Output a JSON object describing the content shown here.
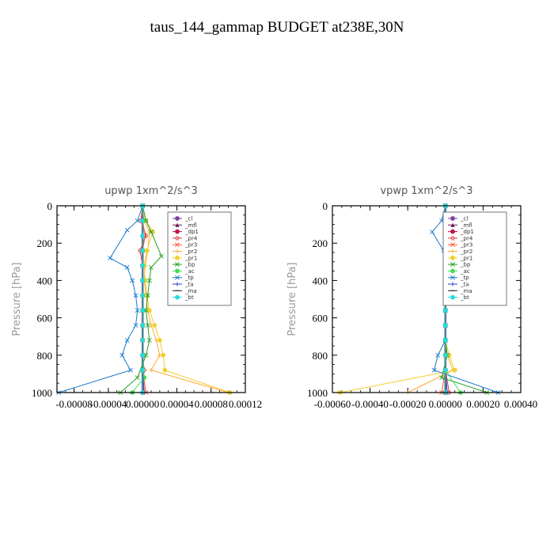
{
  "figure": {
    "title": "taus_144_gammap  BUDGET at238E,30N"
  },
  "chart_data": [
    {
      "type": "line",
      "title": "upwp   1xm^2/s^3",
      "xlabel": "",
      "ylabel": "Pressure [hPa]",
      "ylim": [
        1000,
        0
      ],
      "xlim": [
        -0.0001,
        0.00012
      ],
      "yticks": [
        0,
        200,
        400,
        600,
        800,
        1000
      ],
      "xticks": [
        -8e-05,
        -4e-05,
        0.0,
        4e-05,
        8e-05,
        0.00012
      ],
      "xtick_labels": [
        "-0.00008",
        "-0.00004",
        "0.00000",
        "0.00004",
        "0.00008",
        "0.00012"
      ],
      "ytick_labels": [
        "0",
        "200",
        "400",
        "600",
        "800",
        "1000"
      ],
      "legend_position": "top-right",
      "series": [
        {
          "name": "_cl",
          "color": "#7f3f9f",
          "marker": "circle",
          "x": [
            0,
            0,
            0,
            0,
            0,
            0,
            0,
            0,
            0,
            0,
            0,
            0,
            0
          ],
          "y": [
            0,
            80,
            160,
            240,
            320,
            400,
            480,
            560,
            640,
            720,
            800,
            880,
            1000
          ]
        },
        {
          "name": "_mfl",
          "color": "#6a1a55",
          "marker": "triangle",
          "x": [
            0,
            0,
            0,
            0,
            0,
            0,
            0,
            0,
            0,
            0,
            0,
            0,
            0
          ],
          "y": [
            0,
            80,
            160,
            240,
            320,
            400,
            480,
            560,
            640,
            720,
            800,
            880,
            1000
          ]
        },
        {
          "name": "_dp1",
          "color": "#c0144e",
          "marker": "circle",
          "x": [
            0,
            0,
            0,
            0,
            0,
            0,
            0,
            0,
            0,
            0,
            0,
            0,
            0
          ],
          "y": [
            0,
            80,
            160,
            240,
            320,
            400,
            480,
            560,
            640,
            720,
            800,
            880,
            1000
          ]
        },
        {
          "name": "_pr4",
          "color": "#e03c3c",
          "marker": "diamond",
          "x": [
            0,
            -2e-06,
            4e-06,
            -3e-06,
            0,
            0,
            0,
            0,
            0,
            0,
            0,
            2e-06,
            0
          ],
          "y": [
            0,
            80,
            160,
            240,
            320,
            400,
            480,
            560,
            640,
            720,
            800,
            880,
            1000
          ]
        },
        {
          "name": "_pr3",
          "color": "#ff5533",
          "marker": "x",
          "x": [
            0,
            0,
            3e-06,
            0,
            0,
            0,
            0,
            0,
            0,
            0,
            0,
            0,
            4e-06
          ],
          "y": [
            0,
            80,
            160,
            240,
            320,
            400,
            480,
            560,
            640,
            720,
            800,
            880,
            1000
          ]
        },
        {
          "name": "_pr2",
          "color": "#ffaa33",
          "marker": "plus",
          "x": [
            0,
            2e-06,
            8e-06,
            6e-06,
            3e-06,
            2e-06,
            4e-06,
            6e-06,
            1e-05,
            1.6e-05,
            2e-05,
            1e-05,
            0.0001
          ],
          "y": [
            0,
            80,
            140,
            240,
            320,
            400,
            480,
            560,
            640,
            720,
            800,
            880,
            1000
          ]
        },
        {
          "name": "_pr1",
          "color": "#f0d030",
          "marker": "circle",
          "x": [
            0,
            4e-06,
            1.2e-05,
            5e-06,
            2e-06,
            3e-06,
            5e-06,
            8e-06,
            1.4e-05,
            2e-05,
            2.4e-05,
            2.6e-05,
            0.000102
          ],
          "y": [
            0,
            80,
            140,
            240,
            320,
            400,
            480,
            560,
            640,
            720,
            800,
            880,
            1000
          ]
        },
        {
          "name": "_bp",
          "color": "#22a022",
          "marker": "x",
          "x": [
            0,
            4e-06,
            1e-05,
            2.2e-05,
            1e-05,
            8e-06,
            6e-06,
            4e-06,
            6e-06,
            8e-06,
            4e-06,
            -6e-06,
            -2.6e-05
          ],
          "y": [
            0,
            80,
            140,
            270,
            330,
            400,
            480,
            560,
            640,
            720,
            800,
            920,
            1000
          ]
        },
        {
          "name": "_ac",
          "color": "#44dd55",
          "marker": "circle",
          "x": [
            0,
            0,
            0,
            0,
            0,
            0,
            0,
            0,
            0,
            0,
            0,
            2e-06,
            -1.2e-05
          ],
          "y": [
            0,
            80,
            160,
            240,
            320,
            400,
            480,
            560,
            640,
            720,
            800,
            920,
            1000
          ]
        },
        {
          "name": "_tp",
          "color": "#1a7acc",
          "marker": "x",
          "x": [
            0,
            -6e-06,
            -1.8e-05,
            -3.8e-05,
            -1.8e-05,
            -1.2e-05,
            -8e-06,
            -6e-06,
            -8e-06,
            -1.8e-05,
            -2.4e-05,
            -1.4e-05,
            -9.8e-05
          ],
          "y": [
            0,
            80,
            130,
            280,
            330,
            400,
            480,
            560,
            640,
            720,
            800,
            880,
            1000
          ]
        },
        {
          "name": "_ta",
          "color": "#2a3acc",
          "marker": "plus",
          "x": [
            0,
            0,
            0,
            0,
            0,
            0,
            0,
            0,
            0,
            0,
            0,
            0,
            2e-06
          ],
          "y": [
            0,
            80,
            160,
            240,
            320,
            400,
            480,
            560,
            640,
            720,
            800,
            880,
            1000
          ]
        },
        {
          "name": "_ma",
          "color": "#222222",
          "marker": "dash",
          "x": [
            0,
            0,
            0,
            0,
            0,
            0,
            0,
            0,
            0,
            0,
            0,
            0,
            0
          ],
          "y": [
            0,
            80,
            160,
            240,
            320,
            400,
            480,
            560,
            640,
            720,
            800,
            880,
            1000
          ]
        },
        {
          "name": "_bt",
          "color": "#22dddd",
          "marker": "circle",
          "x": [
            0,
            0,
            0,
            0,
            0,
            0,
            0,
            0,
            0,
            0,
            0,
            0,
            0
          ],
          "y": [
            0,
            80,
            160,
            240,
            320,
            400,
            480,
            560,
            640,
            720,
            800,
            880,
            1000
          ]
        }
      ]
    },
    {
      "type": "line",
      "title": "vpwp   1xm^2/s^3",
      "xlabel": "",
      "ylabel": "Pressure [hPa]",
      "ylim": [
        1000,
        0
      ],
      "xlim": [
        -0.0006,
        0.0004
      ],
      "yticks": [
        0,
        200,
        400,
        600,
        800,
        1000
      ],
      "xticks": [
        -0.0006,
        -0.0004,
        -0.0002,
        0.0,
        0.0002,
        0.0004
      ],
      "xtick_labels": [
        "-0.00060",
        "-0.00040",
        "-0.00020",
        "0.00000",
        "0.00020",
        "0.00040"
      ],
      "ytick_labels": [
        "0",
        "200",
        "400",
        "600",
        "800",
        "1000"
      ],
      "legend_position": "top-right",
      "series": [
        {
          "name": "_cl",
          "color": "#7f3f9f",
          "marker": "circle",
          "x": [
            0,
            0,
            0,
            0,
            0,
            0,
            0,
            0,
            0,
            0,
            0,
            0,
            0
          ],
          "y": [
            0,
            80,
            160,
            240,
            320,
            400,
            480,
            560,
            640,
            720,
            800,
            880,
            1000
          ]
        },
        {
          "name": "_mfl",
          "color": "#6a1a55",
          "marker": "triangle",
          "x": [
            0,
            0,
            0,
            0,
            0,
            0,
            0,
            0,
            0,
            0,
            0,
            0,
            0
          ],
          "y": [
            0,
            80,
            160,
            240,
            320,
            400,
            480,
            560,
            640,
            720,
            800,
            880,
            1000
          ]
        },
        {
          "name": "_dp1",
          "color": "#c0144e",
          "marker": "circle",
          "x": [
            0,
            0,
            0,
            0,
            0,
            0,
            0,
            0,
            0,
            0,
            0,
            0,
            0
          ],
          "y": [
            0,
            80,
            160,
            240,
            320,
            400,
            480,
            560,
            640,
            720,
            800,
            880,
            1000
          ]
        },
        {
          "name": "_pr4",
          "color": "#e03c3c",
          "marker": "diamond",
          "x": [
            0,
            0,
            0,
            0,
            0,
            0,
            0,
            0,
            0,
            0,
            0,
            0,
            2e-05
          ],
          "y": [
            0,
            80,
            160,
            240,
            320,
            400,
            480,
            560,
            640,
            720,
            800,
            880,
            1000
          ]
        },
        {
          "name": "_pr3",
          "color": "#ff5533",
          "marker": "x",
          "x": [
            0,
            0,
            3e-05,
            0,
            0,
            0,
            0,
            0,
            0,
            0,
            0,
            0,
            -2e-05
          ],
          "y": [
            0,
            80,
            150,
            240,
            320,
            400,
            480,
            560,
            640,
            720,
            800,
            880,
            1000
          ]
        },
        {
          "name": "_pr2",
          "color": "#ffaa33",
          "marker": "plus",
          "x": [
            0,
            0,
            1e-05,
            0,
            0,
            0,
            0,
            0,
            0,
            0,
            1e-05,
            4e-05,
            -0.0002
          ],
          "y": [
            0,
            80,
            150,
            240,
            320,
            400,
            480,
            560,
            640,
            720,
            800,
            880,
            1000
          ]
        },
        {
          "name": "_pr1",
          "color": "#f0d030",
          "marker": "circle",
          "x": [
            0,
            0,
            2e-05,
            0,
            0,
            0,
            0,
            0,
            0,
            0,
            2e-05,
            5e-05,
            -0.00056
          ],
          "y": [
            0,
            80,
            150,
            240,
            320,
            400,
            480,
            560,
            640,
            720,
            800,
            880,
            1000
          ]
        },
        {
          "name": "_bp",
          "color": "#22a022",
          "marker": "x",
          "x": [
            0,
            0,
            3e-05,
            0,
            0,
            0,
            0,
            0,
            0,
            0,
            1e-05,
            -2e-05,
            0.00022
          ],
          "y": [
            0,
            80,
            150,
            240,
            320,
            400,
            480,
            560,
            640,
            720,
            800,
            920,
            1000
          ]
        },
        {
          "name": "_ac",
          "color": "#44dd55",
          "marker": "circle",
          "x": [
            0,
            0,
            0,
            0,
            0,
            0,
            0,
            0,
            0,
            0,
            0,
            0,
            8e-05
          ],
          "y": [
            0,
            80,
            160,
            240,
            320,
            400,
            480,
            560,
            640,
            720,
            800,
            880,
            1000
          ]
        },
        {
          "name": "_tp",
          "color": "#1a7acc",
          "marker": "x",
          "x": [
            0,
            -2e-05,
            -7e-05,
            -1e-05,
            0,
            0,
            0,
            0,
            0,
            0,
            -4e-05,
            -6e-05,
            0.00028
          ],
          "y": [
            0,
            80,
            140,
            240,
            320,
            400,
            480,
            560,
            640,
            720,
            800,
            880,
            1000
          ]
        },
        {
          "name": "_ta",
          "color": "#2a3acc",
          "marker": "plus",
          "x": [
            0,
            0,
            0,
            0,
            0,
            0,
            0,
            0,
            0,
            0,
            0,
            0,
            1e-05
          ],
          "y": [
            0,
            80,
            160,
            240,
            320,
            400,
            480,
            560,
            640,
            720,
            800,
            880,
            1000
          ]
        },
        {
          "name": "_ma",
          "color": "#222222",
          "marker": "dash",
          "x": [
            0,
            0,
            0,
            0,
            0,
            0,
            0,
            0,
            0,
            0,
            0,
            0,
            0
          ],
          "y": [
            0,
            80,
            160,
            240,
            320,
            400,
            480,
            560,
            640,
            720,
            800,
            880,
            1000
          ]
        },
        {
          "name": "_bt",
          "color": "#22dddd",
          "marker": "circle",
          "x": [
            0,
            0,
            0,
            0,
            0,
            0,
            0,
            0,
            0,
            0,
            0,
            0,
            0
          ],
          "y": [
            0,
            80,
            160,
            240,
            320,
            400,
            480,
            560,
            640,
            720,
            800,
            880,
            1000
          ]
        }
      ]
    }
  ]
}
